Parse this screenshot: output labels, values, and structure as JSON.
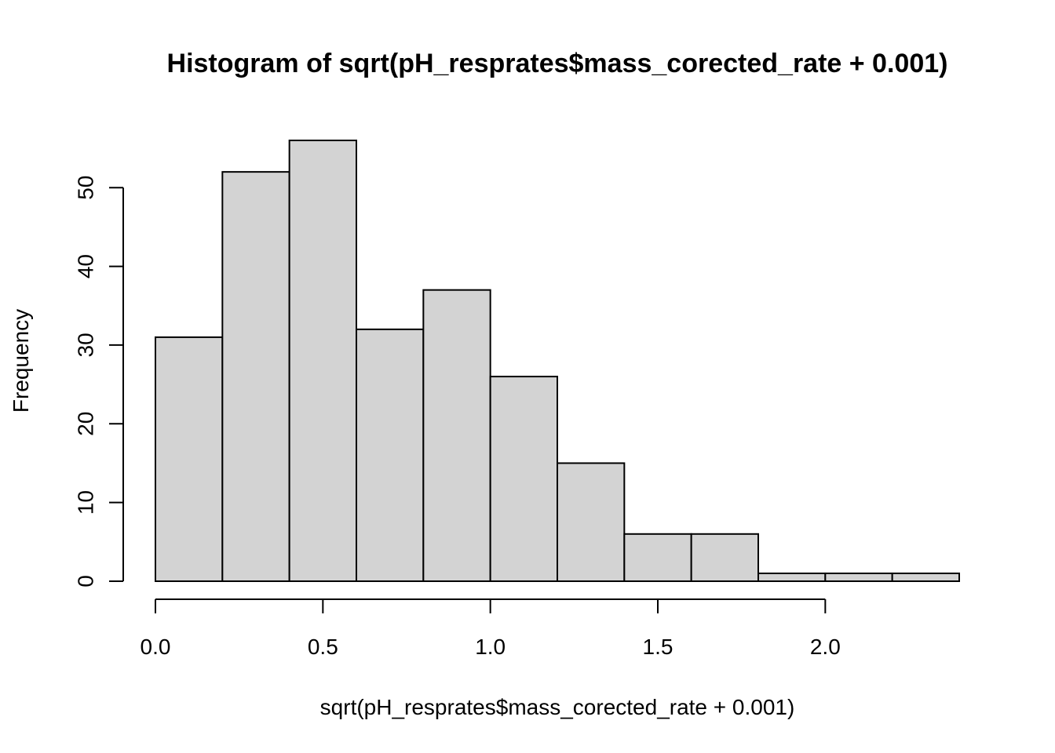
{
  "chart_data": {
    "type": "bar",
    "title": "Histogram of sqrt(pH_resprates$mass_corected_rate + 0.001)",
    "xlabel": "sqrt(pH_resprates$mass_corected_rate + 0.001)",
    "ylabel": "Frequency",
    "bin_edges": [
      0.0,
      0.2,
      0.4,
      0.6,
      0.8,
      1.0,
      1.2,
      1.4,
      1.6,
      1.8,
      2.0,
      2.2,
      2.4
    ],
    "values": [
      31,
      52,
      56,
      32,
      37,
      26,
      15,
      6,
      6,
      1,
      1,
      1
    ],
    "xlim": [
      0.0,
      2.4
    ],
    "ylim": [
      0,
      56
    ],
    "x_ticks": [
      0.0,
      0.5,
      1.0,
      1.5,
      2.0
    ],
    "x_tick_labels": [
      "0.0",
      "0.5",
      "1.0",
      "1.5",
      "2.0"
    ],
    "y_ticks": [
      0,
      10,
      20,
      30,
      40,
      50
    ],
    "y_tick_labels": [
      "0",
      "10",
      "20",
      "30",
      "40",
      "50"
    ],
    "bar_color": "#d3d3d3",
    "grid": false,
    "legend": false
  }
}
